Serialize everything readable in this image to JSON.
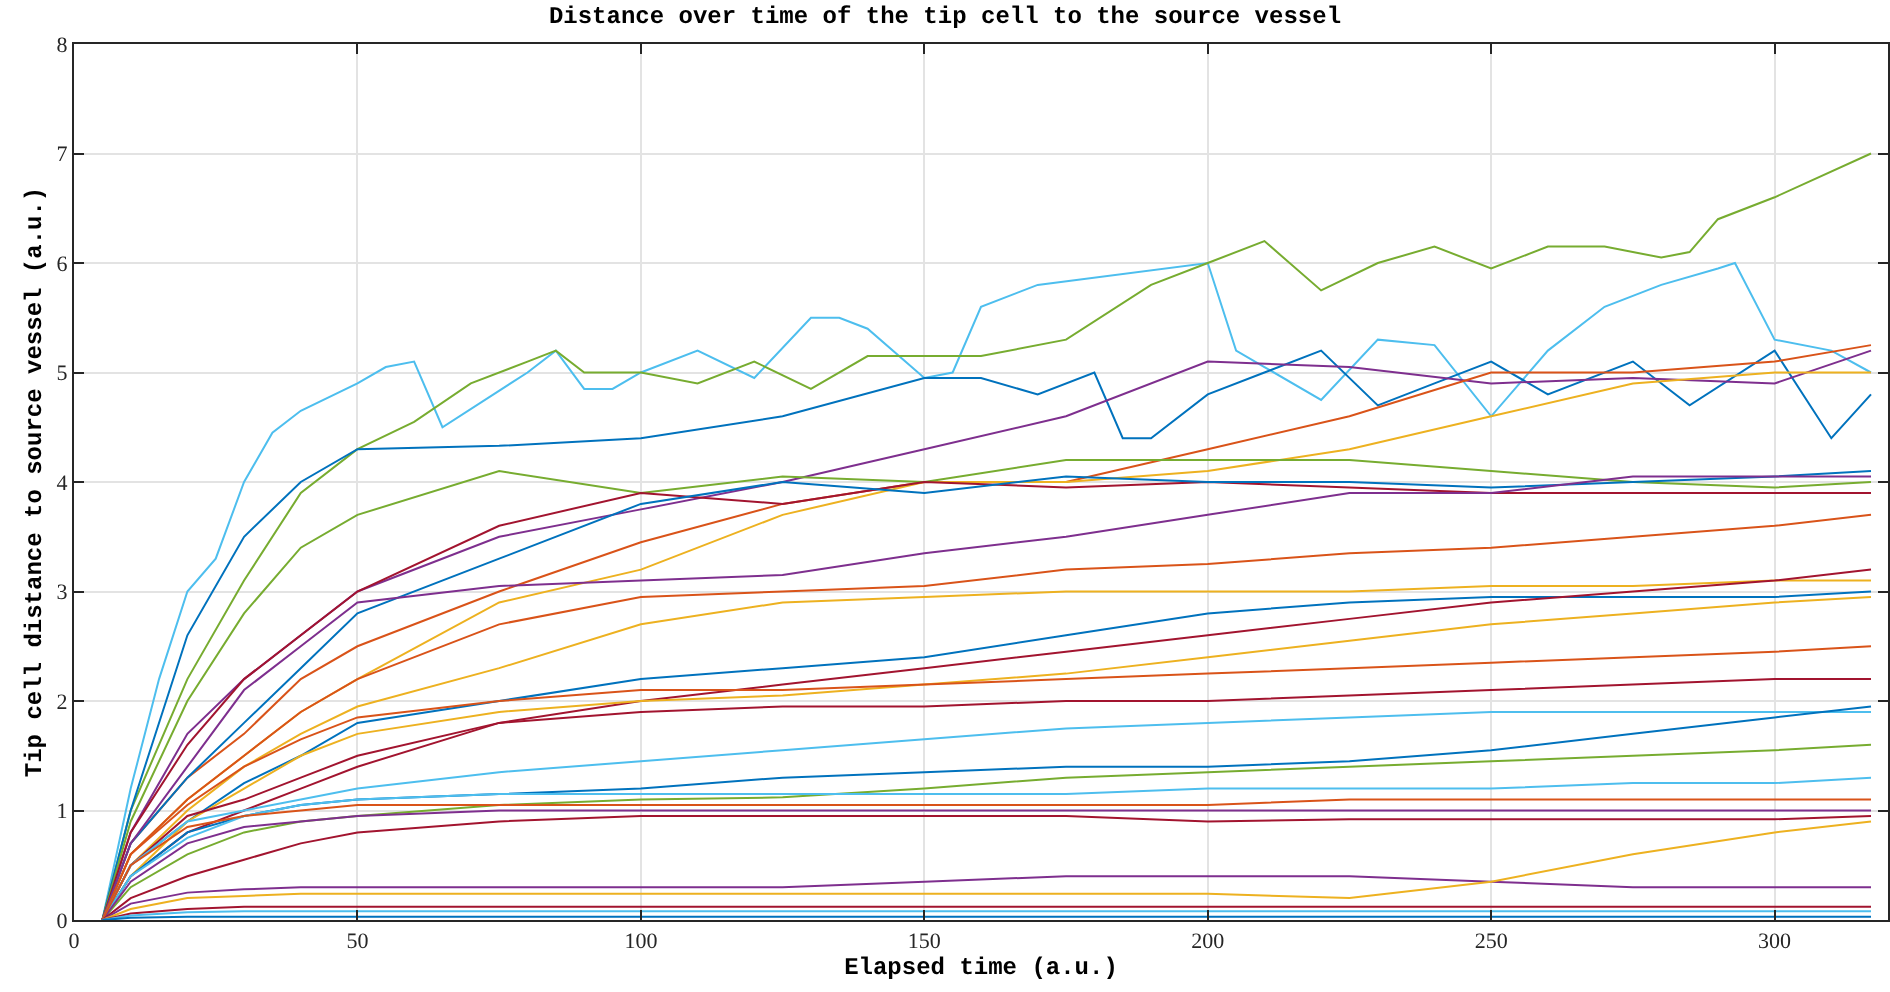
{
  "chart_data": {
    "type": "line",
    "title": "Distance over time of the tip cell to the source vessel",
    "xlabel": "Elapsed time (a.u.)",
    "ylabel": "Tip cell distance to source vessel (a.u.)",
    "x": [
      5,
      10,
      20,
      30,
      40,
      50,
      75,
      100,
      125,
      150,
      175,
      200,
      225,
      250,
      275,
      300,
      317
    ],
    "xlim": [
      0,
      320
    ],
    "xticks": [
      0,
      50,
      100,
      150,
      200,
      250,
      300
    ],
    "ylim": [
      0,
      8
    ],
    "yticks": [
      0,
      1,
      2,
      3,
      4,
      5,
      6,
      7,
      8
    ],
    "grid": true,
    "marker": "none",
    "line_style": "solid",
    "series": [
      {
        "color": "#4dbeee",
        "x": [
          5,
          10,
          15,
          20,
          25,
          30,
          35,
          40,
          50,
          55,
          60,
          65,
          80,
          85,
          90,
          95,
          100,
          110,
          120,
          130,
          135,
          140,
          150,
          155,
          160,
          170,
          200,
          205,
          210,
          220,
          230,
          240,
          250,
          260,
          270,
          280,
          290,
          293,
          300,
          310,
          317
        ],
        "values": [
          0,
          1.2,
          2.2,
          3.0,
          3.3,
          4.0,
          4.45,
          4.65,
          4.9,
          5.05,
          5.1,
          4.5,
          5.0,
          5.2,
          4.85,
          4.85,
          5.0,
          5.2,
          4.95,
          5.5,
          5.5,
          5.4,
          4.95,
          5.0,
          5.6,
          5.8,
          6.0,
          5.2,
          5.05,
          4.75,
          5.3,
          5.25,
          4.6,
          5.2,
          5.6,
          5.8,
          5.95,
          6.0,
          5.3,
          5.2,
          5.0
        ]
      },
      {
        "color": "#77ac30",
        "x": [
          5,
          10,
          20,
          30,
          40,
          50,
          60,
          70,
          80,
          85,
          90,
          100,
          110,
          120,
          130,
          140,
          160,
          175,
          190,
          200,
          210,
          220,
          230,
          240,
          250,
          260,
          270,
          280,
          285,
          290,
          300,
          317
        ],
        "values": [
          0,
          1.0,
          2.2,
          3.1,
          3.9,
          4.3,
          4.55,
          4.9,
          5.1,
          5.2,
          5.0,
          5.0,
          4.9,
          5.1,
          4.85,
          5.15,
          5.15,
          5.3,
          5.8,
          6.0,
          6.2,
          5.75,
          6.0,
          6.15,
          5.95,
          6.15,
          6.15,
          6.05,
          6.1,
          6.4,
          6.6,
          7.0
        ]
      },
      {
        "color": "#0072bd",
        "x": [
          5,
          10,
          20,
          30,
          40,
          50,
          75,
          100,
          125,
          150,
          160,
          170,
          180,
          185,
          190,
          200,
          210,
          220,
          230,
          240,
          250,
          260,
          275,
          285,
          300,
          310,
          317
        ],
        "values": [
          0,
          1.0,
          2.6,
          3.5,
          4.0,
          4.3,
          4.33,
          4.4,
          4.6,
          4.95,
          4.95,
          4.8,
          5.0,
          4.4,
          4.4,
          4.8,
          5.0,
          5.2,
          4.7,
          4.9,
          5.1,
          4.8,
          5.1,
          4.7,
          5.2,
          4.4,
          4.8
        ]
      },
      {
        "color": "#7e2f8e",
        "values": [
          0,
          0.8,
          1.7,
          2.2,
          2.6,
          3.0,
          3.5,
          3.75,
          4.0,
          4.3,
          4.6,
          5.1,
          5.05,
          4.9,
          4.95,
          4.9,
          5.2
        ]
      },
      {
        "color": "#d95319",
        "values": [
          0,
          0.7,
          1.3,
          1.7,
          2.2,
          2.5,
          3.0,
          3.45,
          3.8,
          4.0,
          4.0,
          4.3,
          4.6,
          5.0,
          5.0,
          5.1,
          5.25
        ]
      },
      {
        "color": "#edb120",
        "values": [
          0,
          0.6,
          1.1,
          1.5,
          1.9,
          2.2,
          2.9,
          3.2,
          3.7,
          4.0,
          4.0,
          4.1,
          4.3,
          4.6,
          4.9,
          5.0,
          5.0
        ]
      },
      {
        "color": "#77ac30",
        "values": [
          0,
          0.9,
          2.0,
          2.8,
          3.4,
          3.7,
          4.1,
          3.9,
          4.05,
          4.0,
          4.2,
          4.2,
          4.2,
          4.1,
          4.0,
          3.95,
          4.0
        ]
      },
      {
        "color": "#a2142f",
        "values": [
          0,
          0.8,
          1.6,
          2.2,
          2.6,
          3.0,
          3.6,
          3.9,
          3.8,
          4.0,
          3.95,
          4.0,
          3.95,
          3.9,
          3.9,
          3.9,
          3.9
        ]
      },
      {
        "color": "#0072bd",
        "values": [
          0,
          0.7,
          1.3,
          1.8,
          2.3,
          2.8,
          3.3,
          3.8,
          4.0,
          3.9,
          4.05,
          4.0,
          4.0,
          3.95,
          4.0,
          4.05,
          4.1
        ]
      },
      {
        "color": "#7e2f8e",
        "values": [
          0,
          0.7,
          1.4,
          2.1,
          2.5,
          2.9,
          3.05,
          3.1,
          3.15,
          3.35,
          3.5,
          3.7,
          3.9,
          3.9,
          4.05,
          4.05,
          4.05
        ]
      },
      {
        "color": "#d95319",
        "values": [
          0,
          0.6,
          1.1,
          1.5,
          1.9,
          2.2,
          2.7,
          2.95,
          3.0,
          3.05,
          3.2,
          3.25,
          3.35,
          3.4,
          3.5,
          3.6,
          3.7
        ]
      },
      {
        "color": "#edb120",
        "values": [
          0,
          0.5,
          1.0,
          1.4,
          1.7,
          1.95,
          2.3,
          2.7,
          2.9,
          2.95,
          3.0,
          3.0,
          3.0,
          3.05,
          3.05,
          3.1,
          3.1
        ]
      },
      {
        "color": "#0072bd",
        "values": [
          0,
          0.5,
          0.9,
          1.25,
          1.5,
          1.8,
          2.0,
          2.2,
          2.3,
          2.4,
          2.6,
          2.8,
          2.9,
          2.95,
          2.95,
          2.95,
          3.0
        ]
      },
      {
        "color": "#a2142f",
        "values": [
          0,
          0.4,
          0.8,
          1.0,
          1.2,
          1.4,
          1.8,
          2.0,
          2.15,
          2.3,
          2.45,
          2.6,
          2.75,
          2.9,
          3.0,
          3.1,
          3.2
        ]
      },
      {
        "color": "#edb120",
        "values": [
          0,
          0.4,
          0.9,
          1.2,
          1.5,
          1.7,
          1.9,
          2.0,
          2.05,
          2.15,
          2.25,
          2.4,
          2.55,
          2.7,
          2.8,
          2.9,
          2.95
        ]
      },
      {
        "color": "#d95319",
        "values": [
          0,
          0.6,
          1.05,
          1.4,
          1.65,
          1.85,
          2.0,
          2.1,
          2.1,
          2.15,
          2.2,
          2.25,
          2.3,
          2.35,
          2.4,
          2.45,
          2.5
        ]
      },
      {
        "color": "#a2142f",
        "values": [
          0,
          0.5,
          0.95,
          1.1,
          1.3,
          1.5,
          1.8,
          1.9,
          1.95,
          1.95,
          2.0,
          2.0,
          2.05,
          2.1,
          2.15,
          2.2,
          2.2
        ]
      },
      {
        "color": "#4dbeee",
        "values": [
          0,
          0.5,
          0.9,
          1.0,
          1.1,
          1.2,
          1.35,
          1.45,
          1.55,
          1.65,
          1.75,
          1.8,
          1.85,
          1.9,
          1.9,
          1.9,
          1.9
        ]
      },
      {
        "color": "#0072bd",
        "values": [
          0,
          0.4,
          0.8,
          0.95,
          1.05,
          1.1,
          1.15,
          1.2,
          1.3,
          1.35,
          1.4,
          1.4,
          1.45,
          1.55,
          1.7,
          1.85,
          1.95
        ]
      },
      {
        "color": "#77ac30",
        "values": [
          0,
          0.3,
          0.6,
          0.8,
          0.9,
          0.95,
          1.05,
          1.1,
          1.12,
          1.2,
          1.3,
          1.35,
          1.4,
          1.45,
          1.5,
          1.55,
          1.6
        ]
      },
      {
        "color": "#4dbeee",
        "values": [
          0,
          0.4,
          0.75,
          0.95,
          1.05,
          1.1,
          1.15,
          1.15,
          1.15,
          1.15,
          1.15,
          1.2,
          1.2,
          1.2,
          1.25,
          1.25,
          1.3
        ]
      },
      {
        "color": "#7e2f8e",
        "values": [
          0,
          0.35,
          0.7,
          0.85,
          0.9,
          0.95,
          1.0,
          1.0,
          1.0,
          1.0,
          1.0,
          1.0,
          1.0,
          1.0,
          1.0,
          1.0,
          1.0
        ]
      },
      {
        "color": "#d95319",
        "values": [
          0,
          0.5,
          0.85,
          0.95,
          1.0,
          1.05,
          1.05,
          1.05,
          1.05,
          1.05,
          1.05,
          1.05,
          1.1,
          1.1,
          1.1,
          1.1,
          1.1
        ]
      },
      {
        "color": "#a2142f",
        "values": [
          0,
          0.2,
          0.4,
          0.55,
          0.7,
          0.8,
          0.9,
          0.95,
          0.95,
          0.95,
          0.95,
          0.9,
          0.92,
          0.92,
          0.92,
          0.92,
          0.95
        ]
      },
      {
        "color": "#7e2f8e",
        "values": [
          0,
          0.15,
          0.25,
          0.28,
          0.3,
          0.3,
          0.3,
          0.3,
          0.3,
          0.35,
          0.4,
          0.4,
          0.4,
          0.35,
          0.3,
          0.3,
          0.3
        ]
      },
      {
        "color": "#edb120",
        "values": [
          0,
          0.1,
          0.2,
          0.22,
          0.24,
          0.24,
          0.24,
          0.24,
          0.24,
          0.24,
          0.24,
          0.24,
          0.2,
          0.35,
          0.6,
          0.8,
          0.9
        ]
      },
      {
        "color": "#a2142f",
        "values": [
          0,
          0.06,
          0.1,
          0.12,
          0.12,
          0.12,
          0.12,
          0.12,
          0.12,
          0.12,
          0.12,
          0.12,
          0.12,
          0.12,
          0.12,
          0.12,
          0.12
        ]
      },
      {
        "color": "#4dbeee",
        "values": [
          0,
          0.04,
          0.07,
          0.08,
          0.08,
          0.08,
          0.08,
          0.08,
          0.08,
          0.08,
          0.08,
          0.08,
          0.08,
          0.08,
          0.08,
          0.08,
          0.08
        ]
      },
      {
        "color": "#0072bd",
        "values": [
          0,
          0.02,
          0.03,
          0.03,
          0.03,
          0.03,
          0.03,
          0.03,
          0.03,
          0.03,
          0.03,
          0.03,
          0.03,
          0.03,
          0.03,
          0.03,
          0.03
        ]
      }
    ]
  }
}
